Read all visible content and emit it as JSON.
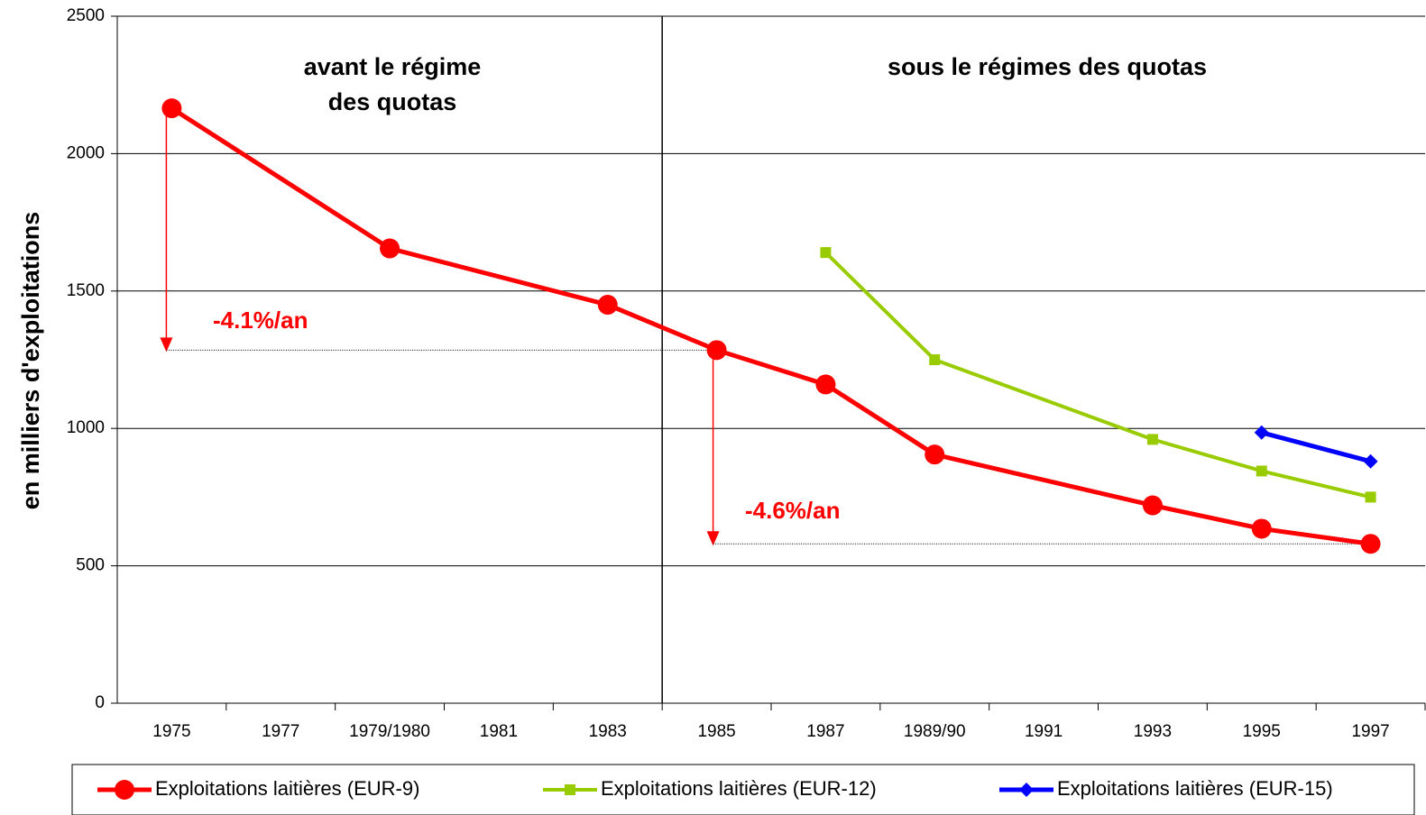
{
  "chart_data": {
    "type": "line",
    "y_label": "en milliers d'exploitations",
    "categories": [
      "1975",
      "1977",
      "1979/1980",
      "1981",
      "1983",
      "1985",
      "1987",
      "1989/90",
      "1991",
      "1993",
      "1995",
      "1997"
    ],
    "series": [
      {
        "name": "Exploitations laitières (EUR-9)",
        "color": "#ff0000",
        "marker": "circle",
        "x": [
          "1975",
          "1979/1980",
          "1983",
          "1985",
          "1987",
          "1989/90",
          "1993",
          "1995",
          "1997"
        ],
        "values": [
          2165,
          1655,
          1450,
          1285,
          1160,
          905,
          720,
          635,
          580
        ]
      },
      {
        "name": "Exploitations laitières (EUR-12)",
        "color": "#99cc00",
        "marker": "square",
        "x": [
          "1987",
          "1989/90",
          "1993",
          "1995",
          "1997"
        ],
        "values": [
          1640,
          1250,
          960,
          845,
          750
        ]
      },
      {
        "name": "Exploitations laitières (EUR-15)",
        "color": "#0000ff",
        "marker": "diamond",
        "x": [
          "1995",
          "1997"
        ],
        "values": [
          985,
          880
        ]
      }
    ],
    "ylim": [
      0,
      2500
    ],
    "yticks": [
      0,
      500,
      1000,
      1500,
      2000,
      2500
    ],
    "grid": true,
    "annotations": {
      "before_quota": [
        "avant le régime",
        "des quotas"
      ],
      "under_quota": "sous le régimes des quotas",
      "rate_before": "-4.1%/an",
      "rate_after": "-4.6%/an"
    },
    "legend": "bottom"
  }
}
